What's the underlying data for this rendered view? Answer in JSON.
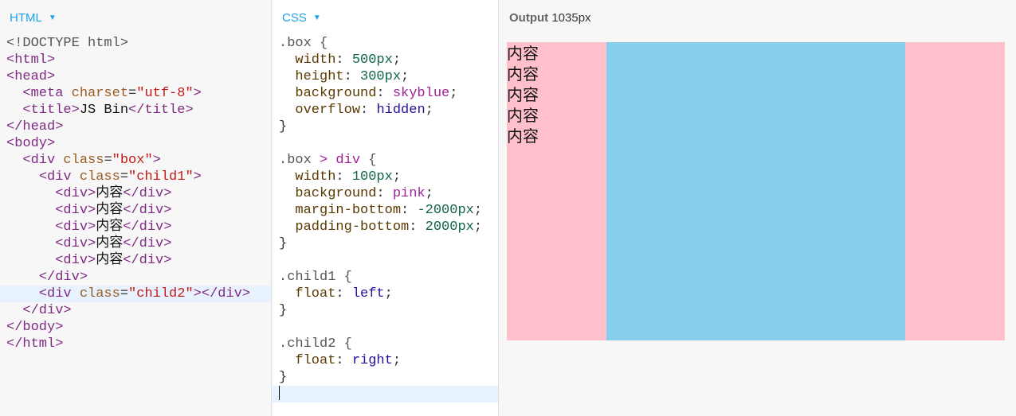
{
  "html_pane": {
    "title": "HTML",
    "lines": [
      [
        [
          "t-doc",
          "<!DOCTYPE html>"
        ]
      ],
      [
        [
          "t-tag",
          "<html>"
        ]
      ],
      [
        [
          "t-tag",
          "<head>"
        ]
      ],
      [
        [
          "t-p",
          "  "
        ],
        [
          "t-tag",
          "<meta "
        ],
        [
          "t-attr",
          "charset"
        ],
        [
          "t-p",
          "="
        ],
        [
          "t-str",
          "\"utf-8\""
        ],
        [
          "t-tag",
          ">"
        ]
      ],
      [
        [
          "t-p",
          "  "
        ],
        [
          "t-tag",
          "<title>"
        ],
        [
          "t-txt",
          "JS Bin"
        ],
        [
          "t-tag",
          "</title>"
        ]
      ],
      [
        [
          "t-tag",
          "</head>"
        ]
      ],
      [
        [
          "t-tag",
          "<body>"
        ]
      ],
      [
        [
          "t-p",
          "  "
        ],
        [
          "t-tag",
          "<div "
        ],
        [
          "t-attr",
          "class"
        ],
        [
          "t-p",
          "="
        ],
        [
          "t-str",
          "\"box\""
        ],
        [
          "t-tag",
          ">"
        ]
      ],
      [
        [
          "t-p",
          "    "
        ],
        [
          "t-tag",
          "<div "
        ],
        [
          "t-attr",
          "class"
        ],
        [
          "t-p",
          "="
        ],
        [
          "t-str",
          "\"child1\""
        ],
        [
          "t-tag",
          ">"
        ]
      ],
      [
        [
          "t-p",
          "      "
        ],
        [
          "t-tag",
          "<div>"
        ],
        [
          "t-txt",
          "内容"
        ],
        [
          "t-tag",
          "</div>"
        ]
      ],
      [
        [
          "t-p",
          "      "
        ],
        [
          "t-tag",
          "<div>"
        ],
        [
          "t-txt",
          "内容"
        ],
        [
          "t-tag",
          "</div>"
        ]
      ],
      [
        [
          "t-p",
          "      "
        ],
        [
          "t-tag",
          "<div>"
        ],
        [
          "t-txt",
          "内容"
        ],
        [
          "t-tag",
          "</div>"
        ]
      ],
      [
        [
          "t-p",
          "      "
        ],
        [
          "t-tag",
          "<div>"
        ],
        [
          "t-txt",
          "内容"
        ],
        [
          "t-tag",
          "</div>"
        ]
      ],
      [
        [
          "t-p",
          "      "
        ],
        [
          "t-tag",
          "<div>"
        ],
        [
          "t-txt",
          "内容"
        ],
        [
          "t-tag",
          "</div>"
        ]
      ],
      [
        [
          "t-p",
          "    "
        ],
        [
          "t-tag",
          "</div>"
        ]
      ],
      [
        [
          "t-p",
          "    "
        ],
        [
          "t-tag",
          "<div "
        ],
        [
          "t-attr",
          "class"
        ],
        [
          "t-p",
          "="
        ],
        [
          "t-str",
          "\"child2\""
        ],
        [
          "t-tag",
          "></div>"
        ]
      ],
      [
        [
          "t-p",
          "  "
        ],
        [
          "t-tag",
          "</div>"
        ]
      ],
      [
        [
          "t-tag",
          "</body>"
        ]
      ],
      [
        [
          "t-tag",
          "</html>"
        ]
      ]
    ],
    "active_line": 15
  },
  "css_pane": {
    "title": "CSS",
    "lines": [
      [
        [
          "t-sel",
          ".box {"
        ]
      ],
      [
        [
          "t-prop",
          "  width"
        ],
        [
          "t-p",
          ": "
        ],
        [
          "t-num",
          "500px"
        ],
        [
          "t-p",
          ";"
        ]
      ],
      [
        [
          "t-prop",
          "  height"
        ],
        [
          "t-p",
          ": "
        ],
        [
          "t-num",
          "300px"
        ],
        [
          "t-p",
          ";"
        ]
      ],
      [
        [
          "t-prop",
          "  background"
        ],
        [
          "t-p",
          ": "
        ],
        [
          "t-kw",
          "skyblue"
        ],
        [
          "t-p",
          ";"
        ]
      ],
      [
        [
          "t-prop",
          "  overflow"
        ],
        [
          "t-p",
          ": "
        ],
        [
          "t-kw2",
          "hidden"
        ],
        [
          "t-p",
          ";"
        ]
      ],
      [
        [
          "t-p",
          "}"
        ]
      ],
      [],
      [
        [
          "t-sel",
          ".box "
        ],
        [
          "t-op",
          ">"
        ],
        [
          "t-sel",
          " "
        ],
        [
          "t-kw",
          "div"
        ],
        [
          "t-sel",
          " {"
        ]
      ],
      [
        [
          "t-prop",
          "  width"
        ],
        [
          "t-p",
          ": "
        ],
        [
          "t-num",
          "100px"
        ],
        [
          "t-p",
          ";"
        ]
      ],
      [
        [
          "t-prop",
          "  background"
        ],
        [
          "t-p",
          ": "
        ],
        [
          "t-kw",
          "pink"
        ],
        [
          "t-p",
          ";"
        ]
      ],
      [
        [
          "t-prop",
          "  margin-bottom"
        ],
        [
          "t-p",
          ": "
        ],
        [
          "t-num",
          "-2000px"
        ],
        [
          "t-p",
          ";"
        ]
      ],
      [
        [
          "t-prop",
          "  padding-bottom"
        ],
        [
          "t-p",
          ": "
        ],
        [
          "t-num",
          "2000px"
        ],
        [
          "t-p",
          ";"
        ]
      ],
      [
        [
          "t-p",
          "}"
        ]
      ],
      [],
      [
        [
          "t-sel",
          ".child1 {"
        ]
      ],
      [
        [
          "t-prop",
          "  float"
        ],
        [
          "t-p",
          ": "
        ],
        [
          "t-kw2",
          "left"
        ],
        [
          "t-p",
          ";"
        ]
      ],
      [
        [
          "t-p",
          "}"
        ]
      ],
      [],
      [
        [
          "t-sel",
          ".child2 {"
        ]
      ],
      [
        [
          "t-prop",
          "  float"
        ],
        [
          "t-p",
          ": "
        ],
        [
          "t-kw2",
          "right"
        ],
        [
          "t-p",
          ";"
        ]
      ],
      [
        [
          "t-p",
          "}"
        ]
      ],
      []
    ],
    "active_line": 21
  },
  "output": {
    "title": "Output",
    "width_label": "1035px",
    "child1_items": [
      "内容",
      "内容",
      "内容",
      "内容",
      "内容"
    ],
    "colors": {
      "box": "#87ceeb",
      "child": "#ffc0cb"
    }
  }
}
